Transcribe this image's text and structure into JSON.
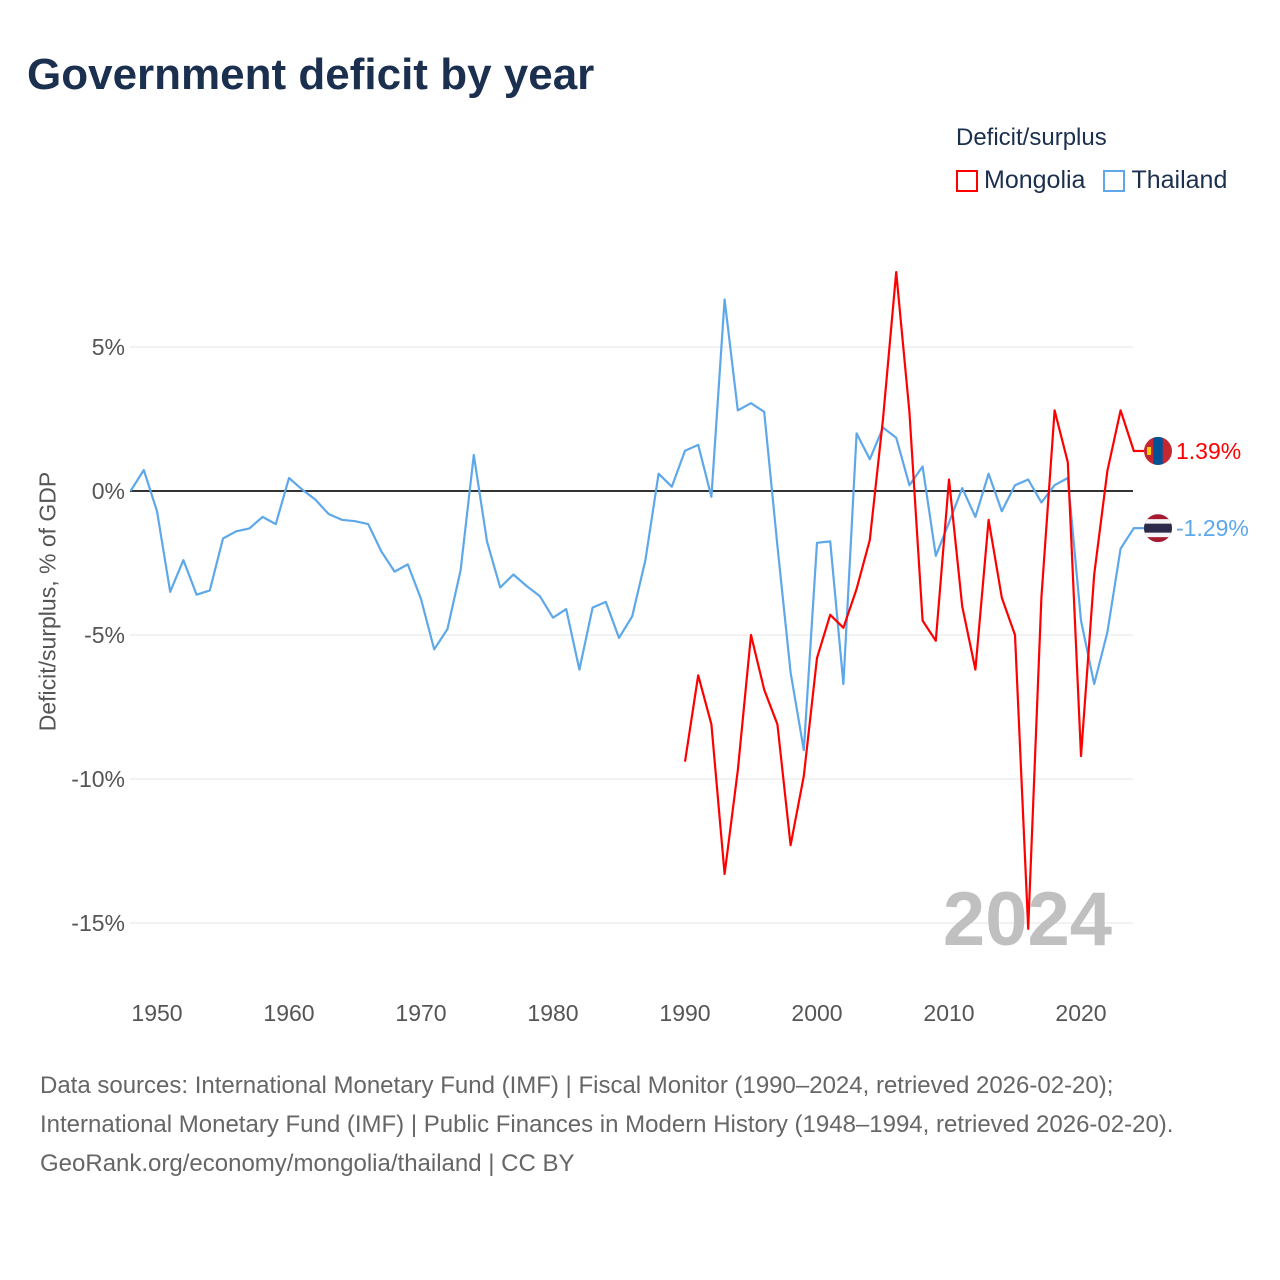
{
  "title": "Government deficit by year",
  "legend": {
    "title": "Deficit/surplus",
    "items": [
      {
        "label": "Mongolia",
        "color": "#ff0000"
      },
      {
        "label": "Thailand",
        "color": "#5ea8ea"
      }
    ]
  },
  "footer": {
    "sources": "Data sources: International Monetary Fund (IMF) | Fiscal Monitor (1990–2024, retrieved 2026-02-20); International Monetary Fund (IMF) | Public Finances in Modern History (1948–1994, retrieved 2026-02-20).",
    "credit": "GeoRank.org/economy/mongolia/thailand | CC BY"
  },
  "chart_data": {
    "type": "line",
    "title": "Government deficit by year",
    "xlabel": "",
    "ylabel": "Deficit/surplus, % of GDP",
    "xlim": [
      1948,
      2024
    ],
    "ylim": [
      -16.5,
      8
    ],
    "x_ticks": [
      1950,
      1960,
      1970,
      1980,
      1990,
      2000,
      2010,
      2020
    ],
    "y_ticks": [
      {
        "value": 5,
        "label": "5%"
      },
      {
        "value": 0,
        "label": "0%"
      },
      {
        "value": -5,
        "label": "-5%"
      },
      {
        "value": -10,
        "label": "-10%"
      },
      {
        "value": -15,
        "label": "-15%"
      }
    ],
    "year_watermark": "2024",
    "grid": true,
    "legend_position": "top-right",
    "series": [
      {
        "name": "Mongolia",
        "color": "#ff0000",
        "end_label": "1.39%",
        "start_year": 1990,
        "values": [
          -9.4,
          -6.4,
          -8.1,
          -13.3,
          -9.7,
          -5.0,
          -6.9,
          -8.1,
          -12.3,
          -9.9,
          -5.8,
          -4.3,
          -4.75,
          -3.4,
          -1.7,
          2.5,
          7.6,
          2.75,
          -4.5,
          -5.2,
          0.4,
          -4.0,
          -6.2,
          -1.0,
          -3.7,
          -5.0,
          -15.2,
          -3.7,
          2.8,
          1.0,
          -9.2,
          -2.9,
          0.7,
          2.8,
          1.39
        ]
      },
      {
        "name": "Thailand",
        "color": "#5ea8ea",
        "end_label": "-1.29%",
        "start_year": 1948,
        "values": [
          0,
          0.73,
          -0.7,
          -3.5,
          -2.4,
          -3.6,
          -3.45,
          -1.65,
          -1.4,
          -1.3,
          -0.9,
          -1.15,
          0.45,
          0.05,
          -0.3,
          -0.8,
          -1.0,
          -1.05,
          -1.15,
          -2.1,
          -2.8,
          -2.55,
          -3.75,
          -5.5,
          -4.8,
          -2.75,
          1.25,
          -1.75,
          -3.35,
          -2.9,
          -3.3,
          -3.65,
          -4.4,
          -4.1,
          -6.2,
          -4.05,
          -3.85,
          -5.1,
          -4.35,
          -2.4,
          0.6,
          0.15,
          1.4,
          1.6,
          -0.2,
          6.65,
          2.8,
          3.05,
          2.75,
          -1.9,
          -6.3,
          -9.0,
          -1.8,
          -1.75,
          -6.7,
          2.0,
          1.1,
          2.2,
          1.85,
          0.2,
          0.85,
          -2.25,
          -1.1,
          0.1,
          -0.9,
          0.6,
          -0.7,
          0.2,
          0.4,
          -0.4,
          0.2,
          0.45,
          -4.5,
          -6.7,
          -4.9,
          -2.0,
          -1.29
        ]
      }
    ]
  }
}
